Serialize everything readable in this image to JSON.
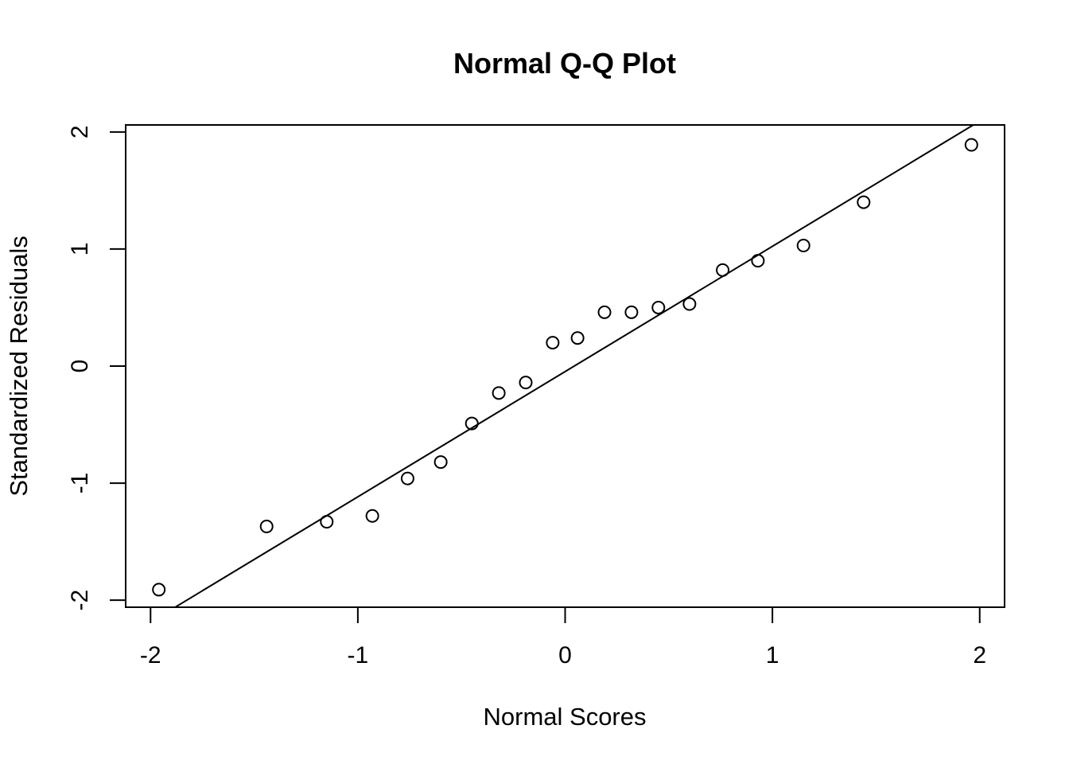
{
  "chart_data": {
    "type": "scatter",
    "title": "Normal Q-Q Plot",
    "xlabel": "Normal Scores",
    "ylabel": "Standardized Residuals",
    "xlim": [
      -2.12,
      2.12
    ],
    "ylim": [
      -2.06,
      2.06
    ],
    "x_ticks": [
      -2,
      -1,
      0,
      1,
      2
    ],
    "x_tick_labels": [
      "-2",
      "-1",
      "0",
      "1",
      "2"
    ],
    "y_ticks": [
      -2,
      -1,
      0,
      1,
      2
    ],
    "y_tick_labels": [
      "-2",
      "-1",
      "0",
      "1",
      "2"
    ],
    "grid": false,
    "points": [
      {
        "x": -1.96,
        "y": -1.91
      },
      {
        "x": -1.44,
        "y": -1.37
      },
      {
        "x": -1.15,
        "y": -1.33
      },
      {
        "x": -0.93,
        "y": -1.28
      },
      {
        "x": -0.76,
        "y": -0.96
      },
      {
        "x": -0.6,
        "y": -0.82
      },
      {
        "x": -0.45,
        "y": -0.49
      },
      {
        "x": -0.32,
        "y": -0.23
      },
      {
        "x": -0.19,
        "y": -0.14
      },
      {
        "x": -0.06,
        "y": 0.2
      },
      {
        "x": 0.06,
        "y": 0.24
      },
      {
        "x": 0.19,
        "y": 0.46
      },
      {
        "x": 0.32,
        "y": 0.46
      },
      {
        "x": 0.45,
        "y": 0.5
      },
      {
        "x": 0.6,
        "y": 0.53
      },
      {
        "x": 0.76,
        "y": 0.82
      },
      {
        "x": 0.93,
        "y": 0.9
      },
      {
        "x": 1.15,
        "y": 1.03
      },
      {
        "x": 1.44,
        "y": 1.4
      },
      {
        "x": 1.96,
        "y": 1.89
      }
    ],
    "reference_line": {
      "intercept": -0.047,
      "slope": 1.07
    }
  }
}
